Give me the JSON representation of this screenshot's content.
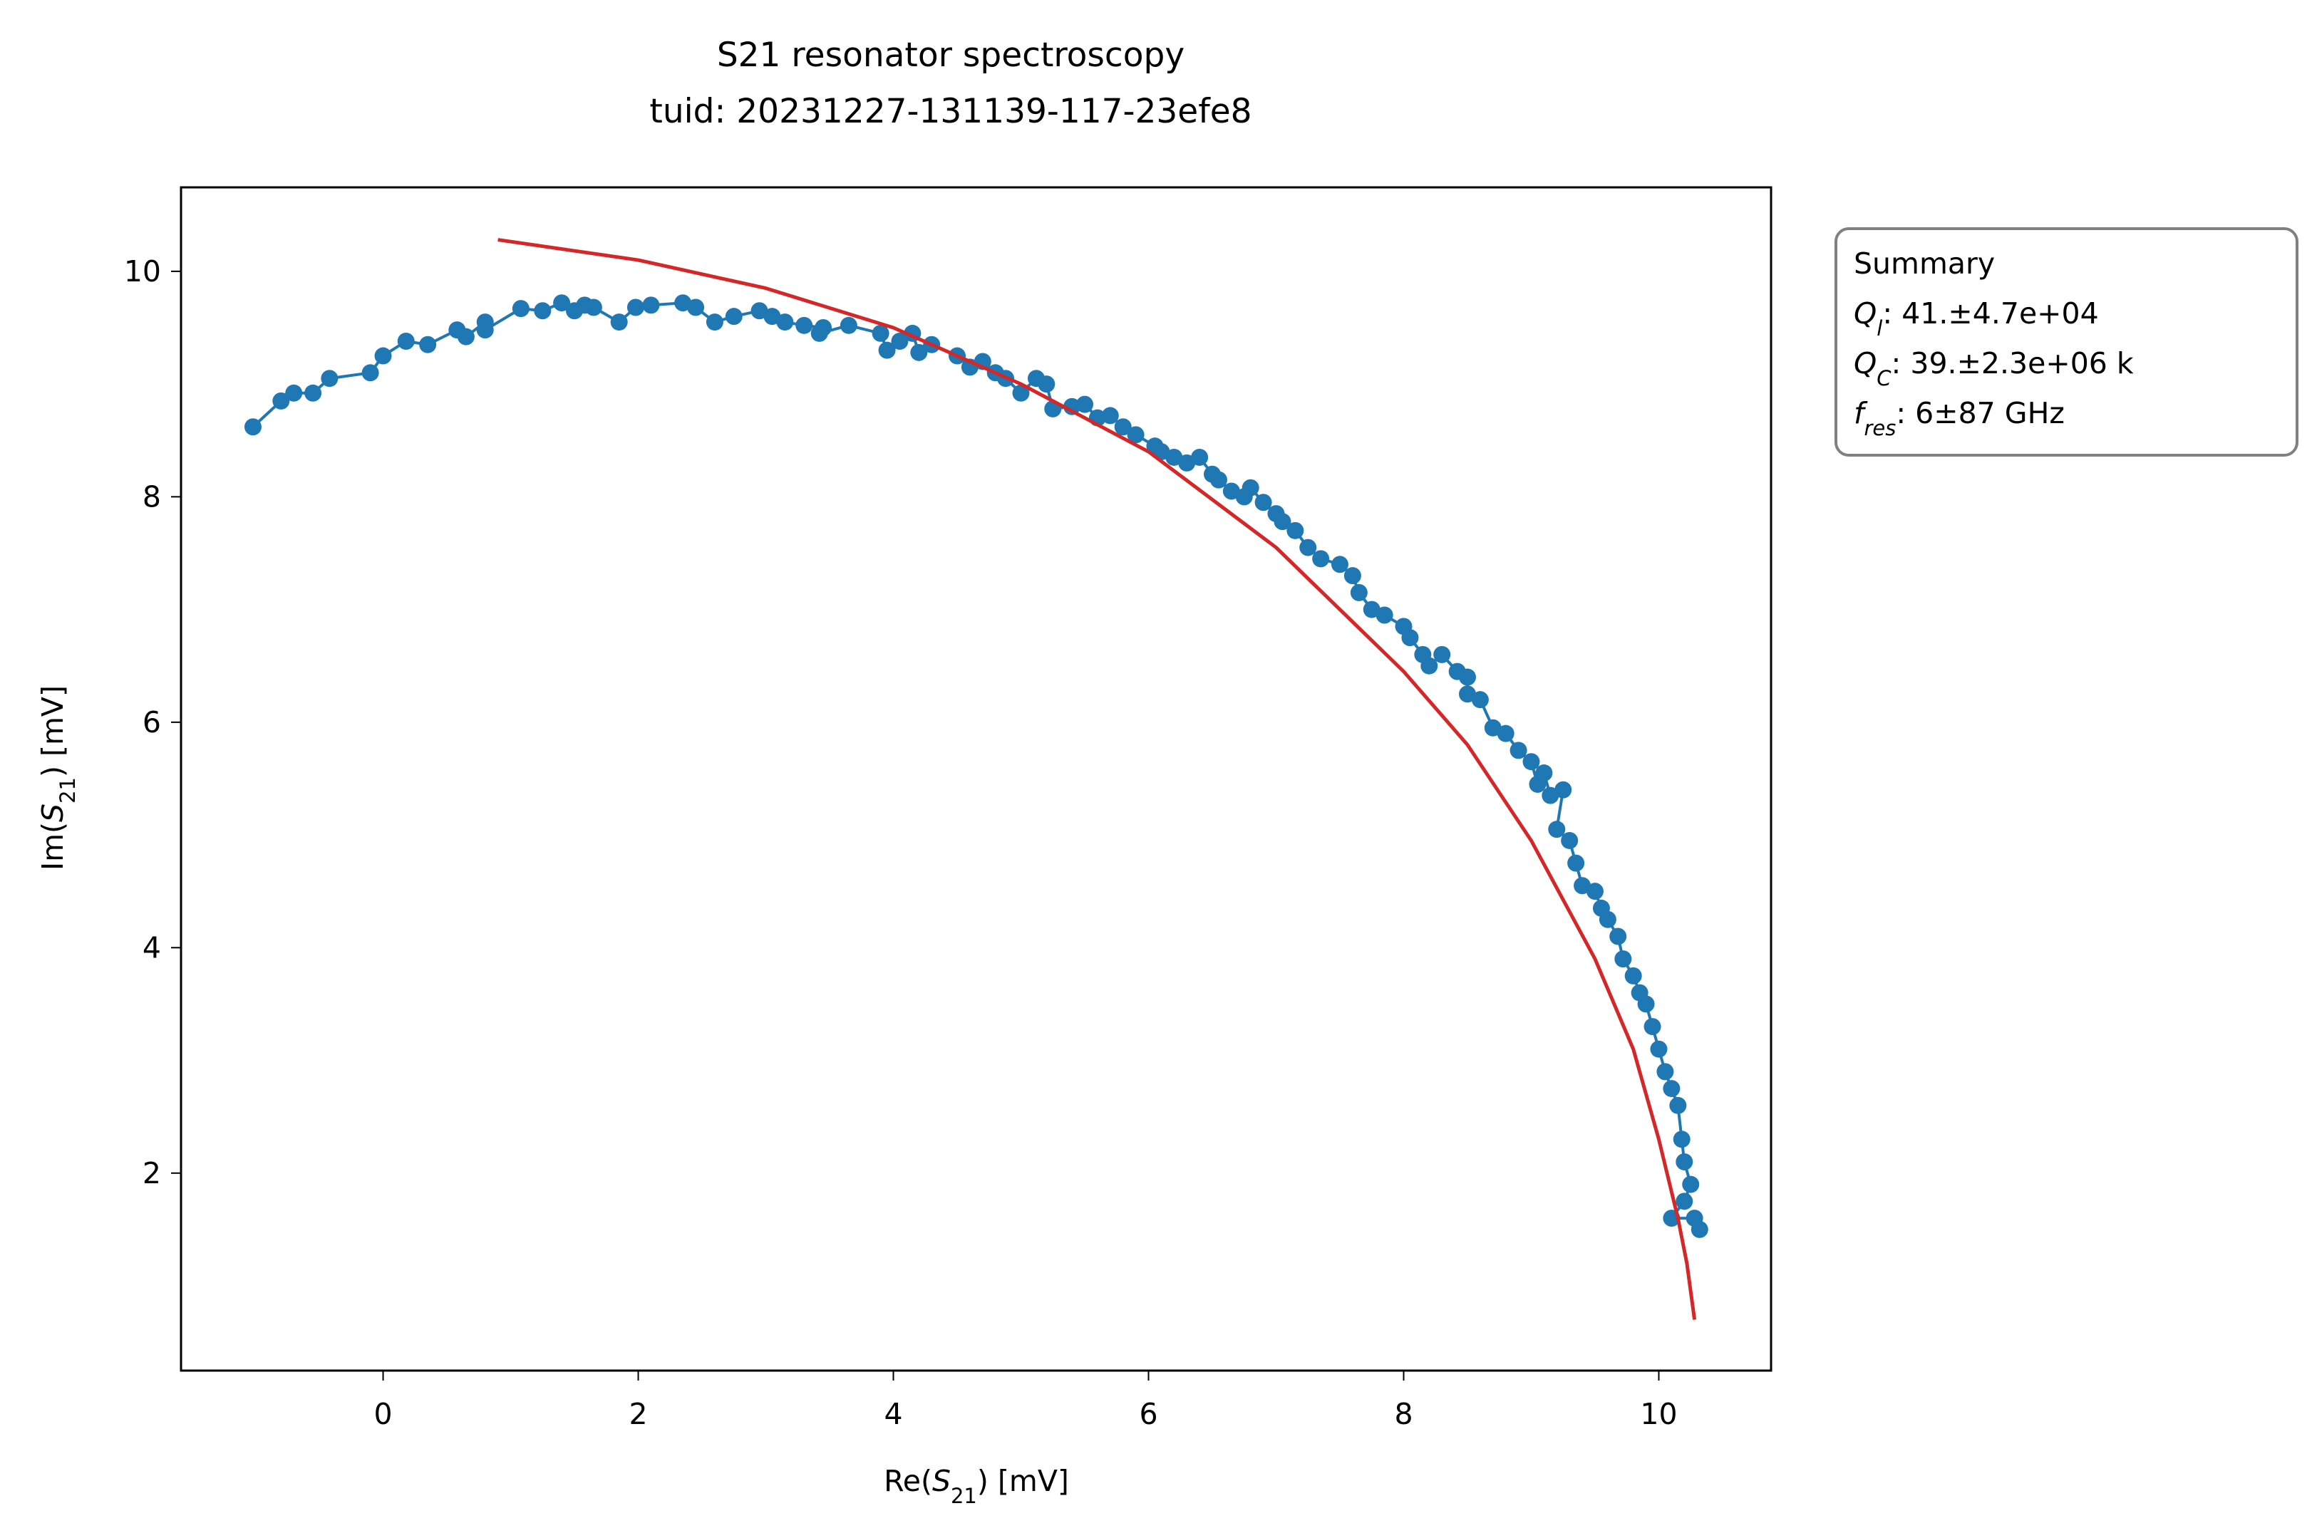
{
  "chart_data": {
    "type": "scatter-line",
    "title": "S21 resonator spectroscopy",
    "subtitle": "tuid: 20231227-131139-117-23efe8",
    "xlabel": {
      "prefix": "Re(",
      "symbol": "S",
      "subscript": "21",
      "suffix": ") [mV]"
    },
    "ylabel": {
      "prefix": "Im(",
      "symbol": "S",
      "subscript": "21",
      "suffix": ") [mV]"
    },
    "xlim": [
      -1.584,
      10.88
    ],
    "ylim": [
      0.248,
      10.745
    ],
    "xticks": [
      0,
      2,
      4,
      6,
      8,
      10
    ],
    "yticks": [
      2,
      4,
      6,
      8,
      10
    ],
    "series": [
      {
        "color": "#1f77b4",
        "marker": true,
        "x": [
          -1.02,
          -0.8,
          -0.7,
          -0.55,
          -0.42,
          -0.1,
          0.0,
          0.18,
          0.35,
          0.58,
          0.65,
          0.8,
          0.8,
          1.08,
          1.25,
          1.4,
          1.5,
          1.58,
          1.65,
          1.85,
          1.98,
          2.1,
          2.35,
          2.45,
          2.6,
          2.75,
          2.95,
          3.05,
          3.15,
          3.3,
          3.45,
          3.42,
          3.65,
          3.9,
          3.95,
          4.05,
          4.15,
          4.2,
          4.3,
          4.5,
          4.6,
          4.7,
          4.8,
          4.88,
          5.0,
          5.12,
          5.2,
          5.25,
          5.4,
          5.5,
          5.6,
          5.7,
          5.8,
          5.9,
          6.05,
          6.1,
          6.2,
          6.3,
          6.4,
          6.5,
          6.55,
          6.65,
          6.75,
          6.8,
          6.9,
          7.0,
          7.05,
          7.15,
          7.25,
          7.35,
          7.5,
          7.6,
          7.65,
          7.75,
          7.85,
          8.0,
          8.05,
          8.15,
          8.2,
          8.3,
          8.42,
          8.5,
          8.5,
          8.6,
          8.7,
          8.8,
          8.9,
          9.0,
          9.05,
          9.1,
          9.15,
          9.25,
          9.2,
          9.3,
          9.35,
          9.4,
          9.5,
          9.55,
          9.6,
          9.68,
          9.72,
          9.8,
          9.85,
          9.9,
          9.95,
          10.0,
          10.05,
          10.1,
          10.15,
          10.18,
          10.2,
          10.25,
          10.2,
          10.1,
          10.28,
          10.32
        ],
        "values": [
          8.62,
          8.85,
          8.92,
          8.92,
          9.05,
          9.1,
          9.25,
          9.38,
          9.35,
          9.48,
          9.42,
          9.55,
          9.48,
          9.67,
          9.65,
          9.72,
          9.65,
          9.7,
          9.68,
          9.55,
          9.68,
          9.7,
          9.72,
          9.68,
          9.55,
          9.6,
          9.65,
          9.6,
          9.55,
          9.52,
          9.5,
          9.45,
          9.52,
          9.45,
          9.3,
          9.38,
          9.45,
          9.28,
          9.35,
          9.25,
          9.15,
          9.2,
          9.1,
          9.05,
          8.92,
          9.05,
          9.0,
          8.78,
          8.8,
          8.82,
          8.7,
          8.72,
          8.62,
          8.55,
          8.45,
          8.4,
          8.35,
          8.3,
          8.35,
          8.2,
          8.15,
          8.05,
          8.0,
          8.08,
          7.95,
          7.85,
          7.78,
          7.7,
          7.55,
          7.45,
          7.4,
          7.3,
          7.15,
          7.0,
          6.95,
          6.85,
          6.75,
          6.6,
          6.5,
          6.6,
          6.45,
          6.4,
          6.25,
          6.2,
          5.95,
          5.9,
          5.75,
          5.65,
          5.45,
          5.55,
          5.35,
          5.4,
          5.05,
          4.95,
          4.75,
          4.55,
          4.5,
          4.35,
          4.25,
          4.1,
          3.9,
          3.75,
          3.6,
          3.5,
          3.3,
          3.1,
          2.9,
          2.75,
          2.6,
          2.3,
          2.1,
          1.9,
          1.75,
          1.6,
          1.6,
          1.5
        ]
      },
      {
        "color": "#d62728",
        "marker": false,
        "x": [
          0.9,
          2,
          3,
          4,
          5,
          6,
          7,
          8,
          8.5,
          9,
          9.5,
          9.8,
          10,
          10.15,
          10.22,
          10.28
        ],
        "values": [
          10.28,
          10.1,
          9.85,
          9.5,
          9.0,
          8.4,
          7.55,
          6.45,
          5.8,
          4.95,
          3.9,
          3.1,
          2.3,
          1.6,
          1.2,
          0.7
        ]
      }
    ],
    "summary": {
      "title": "Summary",
      "lines": [
        {
          "symbol": "Q",
          "subscript": "l",
          "text": ": 41.±4.7e+04"
        },
        {
          "symbol": "Q",
          "subscript": "C",
          "text": ": 39.±2.3e+06 k"
        },
        {
          "symbol": "f",
          "subscript": "res",
          "text": ": 6±87 GHz"
        }
      ]
    }
  }
}
